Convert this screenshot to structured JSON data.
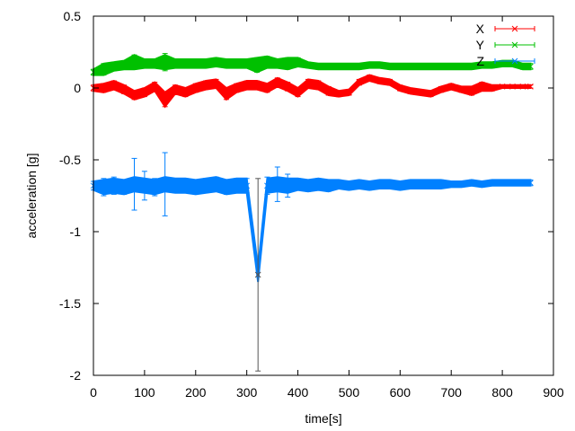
{
  "chart_data": {
    "type": "scatter",
    "xlabel": "time[s]",
    "ylabel": "acceleration [g]",
    "xlim": [
      0,
      900
    ],
    "ylim": [
      -2,
      0.5
    ],
    "xticks": [
      "0",
      "100",
      "200",
      "300",
      "400",
      "500",
      "600",
      "700",
      "800",
      "900"
    ],
    "yticks": [
      "0.5",
      "0",
      "-0.5",
      "-1",
      "-1.5",
      "-2"
    ],
    "grid": false,
    "legend": "top-right",
    "error_bars": true,
    "series": [
      {
        "name": "X",
        "color": "#ff0000",
        "marker": "+",
        "x": [
          0,
          20,
          40,
          60,
          80,
          100,
          120,
          140,
          160,
          180,
          200,
          220,
          240,
          260,
          280,
          300,
          320,
          340,
          360,
          380,
          400,
          420,
          440,
          460,
          480,
          500,
          520,
          540,
          560,
          580,
          600,
          620,
          640,
          660,
          680,
          700,
          720,
          740,
          760,
          780,
          800,
          820,
          840,
          855
        ],
        "y": [
          -0.0,
          0.0,
          0.02,
          -0.01,
          -0.05,
          -0.03,
          0.01,
          -0.08,
          -0.01,
          -0.03,
          0.0,
          0.02,
          0.03,
          -0.04,
          0.0,
          0.02,
          0.02,
          0.0,
          0.04,
          0.01,
          -0.03,
          0.03,
          0.02,
          -0.02,
          -0.04,
          -0.03,
          0.04,
          0.07,
          0.05,
          0.04,
          0.0,
          -0.02,
          -0.03,
          -0.04,
          -0.01,
          0.01,
          -0.01,
          -0.02,
          0.01,
          0.0,
          0.01,
          0.01,
          0.01,
          0.01
        ],
        "err": [
          0.02,
          0.03,
          0.03,
          0.03,
          0.03,
          0.03,
          0.03,
          0.05,
          0.03,
          0.03,
          0.03,
          0.03,
          0.03,
          0.04,
          0.03,
          0.03,
          0.03,
          0.03,
          0.03,
          0.03,
          0.03,
          0.03,
          0.03,
          0.03,
          0.02,
          0.02,
          0.02,
          0.02,
          0.02,
          0.02,
          0.02,
          0.02,
          0.02,
          0.02,
          0.02,
          0.02,
          0.02,
          0.03,
          0.03,
          0.02,
          0.01,
          0.01,
          0.01,
          0.01
        ]
      },
      {
        "name": "Y",
        "color": "#00c000",
        "marker": "x",
        "x": [
          0,
          20,
          40,
          60,
          80,
          100,
          120,
          140,
          160,
          180,
          200,
          220,
          240,
          260,
          280,
          300,
          320,
          340,
          360,
          380,
          400,
          420,
          440,
          460,
          480,
          500,
          520,
          540,
          560,
          580,
          600,
          620,
          640,
          660,
          680,
          700,
          720,
          740,
          760,
          780,
          800,
          820,
          840,
          855
        ],
        "y": [
          0.11,
          0.13,
          0.15,
          0.16,
          0.18,
          0.17,
          0.17,
          0.18,
          0.17,
          0.17,
          0.17,
          0.17,
          0.18,
          0.17,
          0.17,
          0.17,
          0.16,
          0.18,
          0.17,
          0.17,
          0.18,
          0.16,
          0.15,
          0.15,
          0.15,
          0.15,
          0.15,
          0.16,
          0.16,
          0.15,
          0.15,
          0.15,
          0.15,
          0.15,
          0.15,
          0.15,
          0.15,
          0.15,
          0.16,
          0.16,
          0.17,
          0.17,
          0.15,
          0.15
        ],
        "err": [
          0.02,
          0.04,
          0.03,
          0.03,
          0.05,
          0.03,
          0.03,
          0.06,
          0.03,
          0.03,
          0.03,
          0.03,
          0.03,
          0.03,
          0.03,
          0.03,
          0.05,
          0.04,
          0.03,
          0.04,
          0.03,
          0.02,
          0.02,
          0.02,
          0.02,
          0.02,
          0.02,
          0.02,
          0.02,
          0.02,
          0.02,
          0.02,
          0.02,
          0.02,
          0.02,
          0.02,
          0.02,
          0.02,
          0.02,
          0.02,
          0.02,
          0.02,
          0.02,
          0.02
        ]
      },
      {
        "name": "Z",
        "color": "#0080ff",
        "marker": "*",
        "x": [
          0,
          20,
          40,
          60,
          80,
          100,
          120,
          140,
          160,
          180,
          200,
          220,
          240,
          260,
          280,
          300,
          322,
          340,
          360,
          380,
          400,
          420,
          440,
          460,
          480,
          500,
          520,
          540,
          560,
          580,
          600,
          620,
          640,
          660,
          680,
          700,
          720,
          740,
          760,
          780,
          800,
          820,
          840,
          855
        ],
        "y": [
          -0.68,
          -0.69,
          -0.68,
          -0.69,
          -0.67,
          -0.68,
          -0.69,
          -0.67,
          -0.68,
          -0.68,
          -0.69,
          -0.68,
          -0.67,
          -0.69,
          -0.68,
          -0.68,
          -1.3,
          -0.68,
          -0.67,
          -0.68,
          -0.67,
          -0.68,
          -0.67,
          -0.68,
          -0.67,
          -0.68,
          -0.67,
          -0.68,
          -0.67,
          -0.67,
          -0.68,
          -0.67,
          -0.67,
          -0.67,
          -0.67,
          -0.67,
          -0.67,
          -0.66,
          -0.67,
          -0.66,
          -0.66,
          -0.66,
          -0.66,
          -0.66
        ],
        "err": [
          0.03,
          0.06,
          0.06,
          0.05,
          0.18,
          0.1,
          0.06,
          0.22,
          0.05,
          0.05,
          0.05,
          0.05,
          0.05,
          0.05,
          0.05,
          0.05,
          0.67,
          0.06,
          0.12,
          0.08,
          0.04,
          0.04,
          0.04,
          0.04,
          0.03,
          0.03,
          0.03,
          0.03,
          0.03,
          0.03,
          0.03,
          0.03,
          0.03,
          0.03,
          0.03,
          0.02,
          0.02,
          0.02,
          0.02,
          0.02,
          0.02,
          0.02,
          0.02,
          0.02
        ]
      }
    ]
  }
}
